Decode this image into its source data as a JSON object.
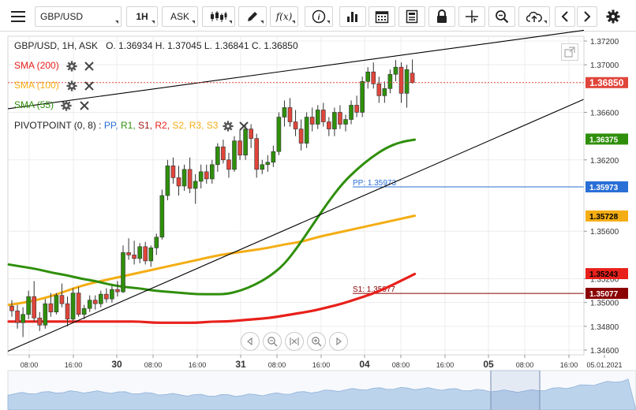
{
  "toolbar": {
    "symbol": "GBP/USD",
    "timeframe": "1H",
    "price_type": "ASK",
    "fx_label": "f(x)"
  },
  "ohlc_header": {
    "pair_info": "GBP/USD, 1H, ASK",
    "open": "O. 1.36934",
    "high": "H. 1.37045",
    "low": "L. 1.36841",
    "close": "C. 1.36850"
  },
  "indicators": [
    {
      "label": "SMA (200)",
      "color": "#e8201b"
    },
    {
      "label": "SMA (100)",
      "color": "#f4ad14"
    },
    {
      "label": "SMA (55)",
      "color": "#2f8f0b"
    }
  ],
  "pivot_legend": {
    "label": "PIVOTPOINT (0, 8)",
    "colon": ":",
    "items": [
      {
        "label": "PP,",
        "color": "#2a6fd6"
      },
      {
        "label": "R1,",
        "color": "#2f8f0b"
      },
      {
        "label": "S1,",
        "color": "#a31515"
      },
      {
        "label": "R2,",
        "color": "#e8201b"
      },
      {
        "label": "S2,",
        "color": "#f4ad14"
      },
      {
        "label": "R3,",
        "color": "#f4ad14"
      },
      {
        "label": "S3",
        "color": "#f4ad14"
      }
    ]
  },
  "pivot_lines": [
    {
      "label": "PP: 1.35973",
      "price": 1.35973,
      "color": "#2a6fd6"
    },
    {
      "label": "S1: 1.35077",
      "price": 1.35077,
      "color": "#8b0000"
    }
  ],
  "price_axis_labels": [
    "1.37200",
    "1.37000",
    "1.36600",
    "1.36200",
    "1.35600",
    "1.35200",
    "1.35000",
    "1.34800",
    "1.34600"
  ],
  "price_tags": [
    {
      "label": "1.36850",
      "price": 1.3685,
      "color": "#e0453a"
    },
    {
      "label": "1.36375",
      "price": 1.36375,
      "color": "#2f8f0b"
    },
    {
      "label": "1.35973",
      "price": 1.35973,
      "color": "#2a6fd6"
    },
    {
      "label": "1.35728",
      "price": 1.35728,
      "color": "#f4ad14"
    },
    {
      "label": "1.35243",
      "price": 1.35243,
      "color": "#e8201b"
    },
    {
      "label": "1.35077",
      "price": 1.35077,
      "color": "#8b0000"
    }
  ],
  "time_axis_labels": [
    "08:00",
    "16:00",
    "30",
    "08:00",
    "16:00",
    "31",
    "08:00",
    "16:00",
    "04",
    "08:00",
    "16:00",
    "05",
    "08:00",
    "16:00",
    "05.01.2021"
  ],
  "colors": {
    "bull": "#2f8f0b",
    "bear": "#e0453a",
    "trendline": "#000000",
    "navigator_fill": "#bcd3ec"
  },
  "chart_data": {
    "type": "candlestick",
    "timeframe": "1H",
    "ylim": [
      1.3456,
      1.3724
    ],
    "candles": [
      [
        1.3497,
        1.3502,
        1.3488,
        1.3493
      ],
      [
        1.3493,
        1.3498,
        1.3478,
        1.3483
      ],
      [
        1.3483,
        1.3496,
        1.3471,
        1.349
      ],
      [
        1.349,
        1.351,
        1.3486,
        1.3505
      ],
      [
        1.3505,
        1.3518,
        1.3484,
        1.3487
      ],
      [
        1.3487,
        1.3492,
        1.3476,
        1.3481
      ],
      [
        1.3481,
        1.3503,
        1.3478,
        1.3499
      ],
      [
        1.3499,
        1.3508,
        1.3488,
        1.3492
      ],
      [
        1.3492,
        1.3508,
        1.349,
        1.3506
      ],
      [
        1.3506,
        1.3516,
        1.3496,
        1.3499
      ],
      [
        1.3499,
        1.3505,
        1.348,
        1.3486
      ],
      [
        1.3486,
        1.3512,
        1.3484,
        1.3508
      ],
      [
        1.3508,
        1.3513,
        1.3488,
        1.349
      ],
      [
        1.349,
        1.3498,
        1.3486,
        1.3495
      ],
      [
        1.3495,
        1.3506,
        1.3492,
        1.3502
      ],
      [
        1.3502,
        1.3506,
        1.3494,
        1.3499
      ],
      [
        1.3499,
        1.351,
        1.3496,
        1.3507
      ],
      [
        1.3507,
        1.3512,
        1.35,
        1.3503
      ],
      [
        1.3503,
        1.3514,
        1.35,
        1.3511
      ],
      [
        1.3511,
        1.3518,
        1.3505,
        1.3509
      ],
      [
        1.3509,
        1.3548,
        1.3508,
        1.3542
      ],
      [
        1.3542,
        1.3554,
        1.3536,
        1.354
      ],
      [
        1.354,
        1.3552,
        1.3532,
        1.3537
      ],
      [
        1.3537,
        1.355,
        1.3533,
        1.3547
      ],
      [
        1.3547,
        1.3551,
        1.3532,
        1.3535
      ],
      [
        1.3535,
        1.3548,
        1.353,
        1.3546
      ],
      [
        1.3546,
        1.3558,
        1.354,
        1.3555
      ],
      [
        1.3555,
        1.3595,
        1.3553,
        1.359
      ],
      [
        1.359,
        1.362,
        1.3586,
        1.3615
      ],
      [
        1.3615,
        1.3622,
        1.36,
        1.3605
      ],
      [
        1.3605,
        1.3615,
        1.359,
        1.3598
      ],
      [
        1.3598,
        1.3616,
        1.3594,
        1.3612
      ],
      [
        1.3612,
        1.3622,
        1.3592,
        1.3596
      ],
      [
        1.3596,
        1.3608,
        1.3583,
        1.3602
      ],
      [
        1.3602,
        1.3616,
        1.3596,
        1.361
      ],
      [
        1.361,
        1.3616,
        1.36,
        1.3604
      ],
      [
        1.3604,
        1.362,
        1.36,
        1.3616
      ],
      [
        1.3616,
        1.3634,
        1.361,
        1.3631
      ],
      [
        1.3631,
        1.3637,
        1.3617,
        1.362
      ],
      [
        1.362,
        1.3626,
        1.3605,
        1.3612
      ],
      [
        1.3612,
        1.364,
        1.361,
        1.3636
      ],
      [
        1.3636,
        1.3645,
        1.362,
        1.3624
      ],
      [
        1.3624,
        1.365,
        1.362,
        1.3646
      ],
      [
        1.3646,
        1.365,
        1.363,
        1.3638
      ],
      [
        1.3638,
        1.3642,
        1.3605,
        1.3612
      ],
      [
        1.3612,
        1.362,
        1.3608,
        1.3616
      ],
      [
        1.3616,
        1.3624,
        1.361,
        1.3618
      ],
      [
        1.3618,
        1.3632,
        1.3614,
        1.3627
      ],
      [
        1.3627,
        1.366,
        1.3624,
        1.3656
      ],
      [
        1.3656,
        1.367,
        1.3648,
        1.3664
      ],
      [
        1.3664,
        1.3672,
        1.3648,
        1.3652
      ],
      [
        1.3652,
        1.3662,
        1.364,
        1.3646
      ],
      [
        1.3646,
        1.3654,
        1.3628,
        1.3634
      ],
      [
        1.3634,
        1.366,
        1.363,
        1.3656
      ],
      [
        1.3656,
        1.3664,
        1.3644,
        1.365
      ],
      [
        1.365,
        1.3666,
        1.3646,
        1.3662
      ],
      [
        1.3662,
        1.3668,
        1.3648,
        1.3652
      ],
      [
        1.3652,
        1.3656,
        1.364,
        1.3646
      ],
      [
        1.3646,
        1.3664,
        1.364,
        1.366
      ],
      [
        1.366,
        1.3666,
        1.3646,
        1.365
      ],
      [
        1.365,
        1.3658,
        1.3644,
        1.3654
      ],
      [
        1.3654,
        1.367,
        1.365,
        1.3666
      ],
      [
        1.3666,
        1.3674,
        1.3656,
        1.366
      ],
      [
        1.366,
        1.369,
        1.3656,
        1.3686
      ],
      [
        1.3686,
        1.3698,
        1.368,
        1.3694
      ],
      [
        1.3694,
        1.3702,
        1.368,
        1.3684
      ],
      [
        1.3684,
        1.369,
        1.3668,
        1.3674
      ],
      [
        1.3674,
        1.3686,
        1.3668,
        1.368
      ],
      [
        1.368,
        1.3696,
        1.3676,
        1.3692
      ],
      [
        1.3692,
        1.3704,
        1.3686,
        1.3698
      ],
      [
        1.3698,
        1.3702,
        1.3668,
        1.3676
      ],
      [
        1.3676,
        1.37,
        1.3664,
        1.3696
      ],
      [
        1.3693,
        1.37045,
        1.36841,
        1.3685
      ]
    ],
    "sma_55": [
      1.3532,
      1.353,
      1.3528,
      1.3525,
      1.3523,
      1.352,
      1.3518,
      1.3515,
      1.3513,
      1.3512,
      1.351,
      1.3509,
      1.3508,
      1.3507,
      1.3507,
      1.3507,
      1.351,
      1.3515,
      1.3522,
      1.3532,
      1.3548,
      1.3566,
      1.3584,
      1.36,
      1.3612,
      1.3622,
      1.363,
      1.3635,
      1.3637
    ],
    "sma_100": [
      1.3498,
      1.35,
      1.3503,
      1.3507,
      1.3512,
      1.3516,
      1.3519,
      1.3522,
      1.3525,
      1.3528,
      1.3531,
      1.3534,
      1.3537,
      1.354,
      1.3542,
      1.3544,
      1.3546,
      1.3549,
      1.3551,
      1.3555,
      1.3558,
      1.3561,
      1.3564,
      1.3567,
      1.357,
      1.3573
    ],
    "sma_200": [
      1.3484,
      1.3484,
      1.3484,
      1.3484,
      1.3484,
      1.3484,
      1.3484,
      1.3484,
      1.3484,
      1.3484,
      1.3483,
      1.3483,
      1.3483,
      1.3483,
      1.3484,
      1.3484,
      1.3485,
      1.3486,
      1.3487,
      1.3489,
      1.3491,
      1.3493,
      1.3496,
      1.3499,
      1.3503,
      1.3507,
      1.3512,
      1.3518,
      1.3524
    ],
    "trendlines": [
      {
        "from": [
          0,
          1.3663
        ],
        "to": [
          1,
          1.3729
        ]
      },
      {
        "from": [
          0,
          1.3459
        ],
        "to": [
          1,
          1.3671
        ]
      }
    ]
  }
}
